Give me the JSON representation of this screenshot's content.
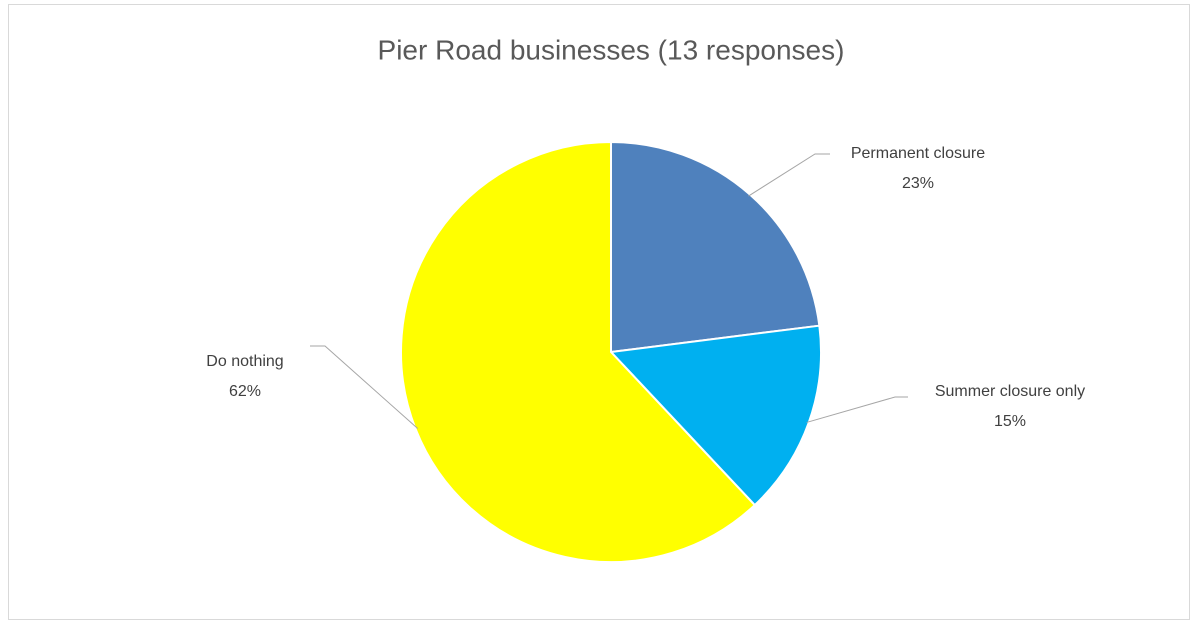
{
  "chart_data": {
    "type": "pie",
    "title": "Pier Road businesses (13 responses)",
    "categories": [
      "Permanent closure",
      "Summer closure only",
      "Do nothing"
    ],
    "values": [
      23,
      15,
      62
    ],
    "value_labels": [
      "23%",
      "15%",
      "62%"
    ],
    "colors": [
      "#4f81bd",
      "#00b0f0",
      "#ffff00"
    ]
  }
}
